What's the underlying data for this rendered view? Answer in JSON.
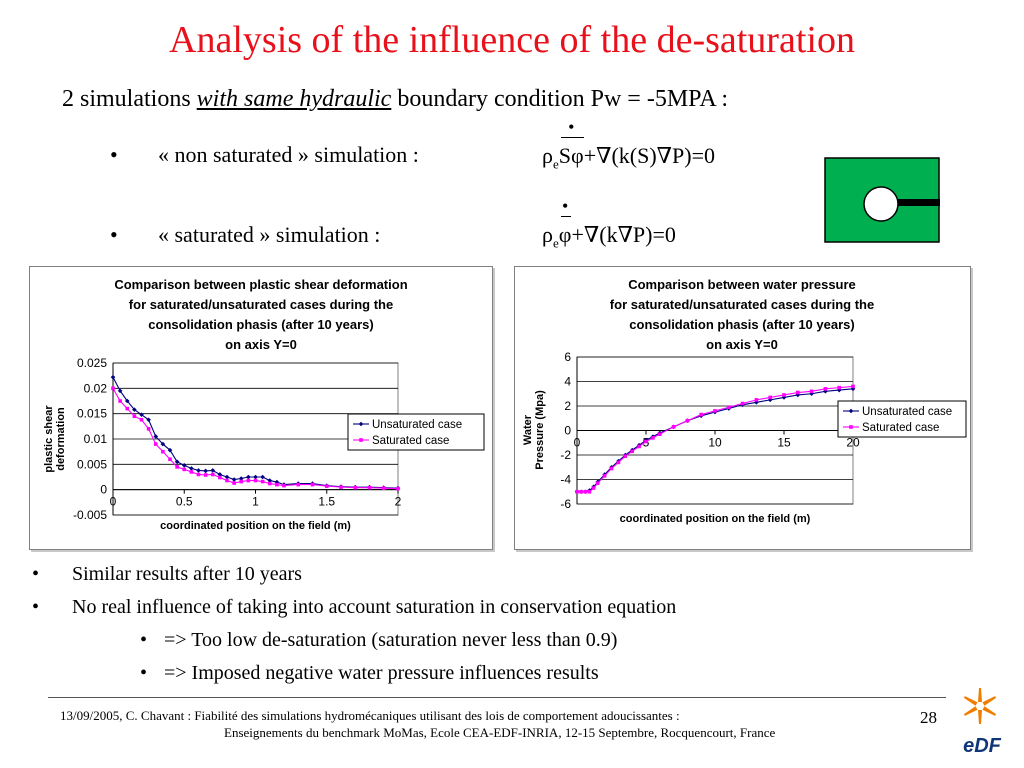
{
  "title": "Analysis of the influence of the de-saturation",
  "subtitle": {
    "prefix": "2 simulations ",
    "emph": "with same hydraulic",
    "suffix": " boundary condition Pw = -5MPA  :"
  },
  "bullets": [
    {
      "marker": "•",
      "text": "« non saturated » simulation :"
    },
    {
      "marker": "•",
      "text": "« saturated » simulation :"
    }
  ],
  "equations": {
    "unsat": {
      "rho": "ρ",
      "sub": "e",
      "over": "Sφ",
      "rest": "+∇(k(S)∇P)=0"
    },
    "sat": {
      "rho": "ρ",
      "sub": "e",
      "over": "φ",
      "rest": "+∇(k∇P)=0"
    }
  },
  "colors": {
    "title": "#e8101a",
    "icon_green": "#00b050",
    "series_unsat": "#000080",
    "series_sat": "#ff00ff",
    "edf_orange": "#f07d00",
    "edf_blue": "#10367a"
  },
  "chart_data": [
    {
      "type": "line",
      "title_lines": [
        "Comparison between plastic shear deformation",
        "for saturated/unsaturated cases during the",
        "consolidation phasis (after 10 years)",
        "on axis Y=0"
      ],
      "xlabel": "coordinated position on the field (m)",
      "ylabel_lines": [
        "plastic shear",
        "deformation"
      ],
      "xlim": [
        0,
        2
      ],
      "ylim": [
        -0.005,
        0.025
      ],
      "xticks": [
        0,
        0.5,
        1,
        1.5,
        2
      ],
      "xtick_labels": [
        "0",
        "0.5",
        "1",
        "1.5",
        "2"
      ],
      "yticks": [
        -0.005,
        0,
        0.005,
        0.01,
        0.015,
        0.02,
        0.025
      ],
      "ytick_labels": [
        "-0.005",
        "0",
        "0.005",
        "0.01",
        "0.015",
        "0.02",
        "0.025"
      ],
      "grid": "horizontal",
      "legend": "right",
      "series": [
        {
          "name": "Unsaturated case",
          "marker": "diamond",
          "x": [
            0,
            0.05,
            0.1,
            0.15,
            0.2,
            0.25,
            0.3,
            0.35,
            0.4,
            0.45,
            0.5,
            0.55,
            0.6,
            0.65,
            0.7,
            0.75,
            0.8,
            0.85,
            0.9,
            0.95,
            1.0,
            1.05,
            1.1,
            1.15,
            1.2,
            1.3,
            1.4,
            1.5,
            1.6,
            1.7,
            1.8,
            1.9,
            2.0
          ],
          "y": [
            0.0222,
            0.0195,
            0.0175,
            0.0158,
            0.0148,
            0.0138,
            0.0105,
            0.009,
            0.0078,
            0.0055,
            0.0048,
            0.0042,
            0.0038,
            0.0037,
            0.0038,
            0.003,
            0.0025,
            0.002,
            0.0022,
            0.0025,
            0.0025,
            0.0025,
            0.0018,
            0.0015,
            0.001,
            0.0012,
            0.0012,
            0.0008,
            0.0006,
            0.0005,
            0.0005,
            0.0004,
            0.0003
          ]
        },
        {
          "name": "Saturated case",
          "marker": "square",
          "x": [
            0,
            0.05,
            0.1,
            0.15,
            0.2,
            0.25,
            0.3,
            0.35,
            0.4,
            0.45,
            0.5,
            0.55,
            0.6,
            0.65,
            0.7,
            0.75,
            0.8,
            0.85,
            0.9,
            0.95,
            1.0,
            1.05,
            1.1,
            1.15,
            1.2,
            1.3,
            1.4,
            1.5,
            1.6,
            1.7,
            1.8,
            1.9,
            2.0
          ],
          "y": [
            0.02,
            0.0175,
            0.016,
            0.0145,
            0.0138,
            0.012,
            0.009,
            0.0075,
            0.006,
            0.0045,
            0.004,
            0.0035,
            0.003,
            0.0029,
            0.003,
            0.0024,
            0.0018,
            0.0013,
            0.0016,
            0.0018,
            0.0018,
            0.0016,
            0.0012,
            0.001,
            0.0008,
            0.001,
            0.001,
            0.0007,
            0.0005,
            0.0004,
            0.0004,
            0.0003,
            0.0002
          ]
        }
      ]
    },
    {
      "type": "line",
      "title_lines": [
        "Comparison between water pressure",
        "for saturated/unsaturated cases during the",
        "consolidation phasis (after 10 years)",
        "on axis Y=0"
      ],
      "xlabel": "coordinated position on the field (m)",
      "ylabel_lines": [
        "Water",
        "Pressure (Mpa)"
      ],
      "xlim": [
        0,
        20
      ],
      "ylim": [
        -6,
        6
      ],
      "xticks": [
        0,
        5,
        10,
        15,
        20
      ],
      "xtick_labels": [
        "0",
        "5",
        "10",
        "15",
        "20"
      ],
      "yticks": [
        -6,
        -4,
        -2,
        0,
        2,
        4,
        6
      ],
      "ytick_labels": [
        "-6",
        "-4",
        "-2",
        "0",
        "2",
        "4",
        "6"
      ],
      "grid": "horizontal",
      "legend": "right",
      "series": [
        {
          "name": "Unsaturated case",
          "marker": "diamond",
          "x": [
            0,
            0.3,
            0.6,
            0.9,
            1.2,
            1.5,
            2,
            2.5,
            3,
            3.5,
            4,
            4.5,
            5,
            5.5,
            6,
            7,
            8,
            9,
            10,
            11,
            12,
            13,
            14,
            15,
            16,
            17,
            18,
            19,
            20
          ],
          "y": [
            -5,
            -5,
            -5,
            -4.9,
            -4.6,
            -4.2,
            -3.6,
            -3.0,
            -2.5,
            -2.0,
            -1.6,
            -1.2,
            -0.8,
            -0.5,
            -0.2,
            0.3,
            0.8,
            1.2,
            1.5,
            1.8,
            2.1,
            2.3,
            2.5,
            2.7,
            2.9,
            3.0,
            3.2,
            3.3,
            3.4
          ]
        },
        {
          "name": "Saturated case",
          "marker": "square",
          "x": [
            0,
            0.3,
            0.6,
            0.9,
            1.2,
            1.5,
            2,
            2.5,
            3,
            3.5,
            4,
            4.5,
            5,
            5.5,
            6,
            7,
            8,
            9,
            10,
            11,
            12,
            13,
            14,
            15,
            16,
            17,
            18,
            19,
            20
          ],
          "y": [
            -5,
            -5,
            -5,
            -5,
            -4.7,
            -4.3,
            -3.7,
            -3.1,
            -2.6,
            -2.1,
            -1.7,
            -1.3,
            -0.9,
            -0.6,
            -0.3,
            0.3,
            0.8,
            1.3,
            1.6,
            1.9,
            2.2,
            2.5,
            2.7,
            2.9,
            3.1,
            3.2,
            3.4,
            3.5,
            3.6
          ]
        }
      ]
    }
  ],
  "conclusions": [
    {
      "marker": "•",
      "text": "Similar results after 10 years"
    },
    {
      "marker": "•",
      "text": "No real influence of taking into account saturation in conservation equation"
    },
    {
      "marker": "•",
      "text": "=> Too low de-saturation (saturation never less than 0.9)"
    },
    {
      "marker": "•",
      "text": "=> Imposed negative water pressure influences results"
    }
  ],
  "footer": {
    "line1": "13/09/2005, C. Chavant : Fiabilité des simulations hydromécaniques utilisant des lois de comportement adoucissantes :",
    "line2": "Enseignements du benchmark MoMas, Ecole CEA-EDF-INRIA, 12-15 Septembre,  Rocquencourt, France",
    "page": "28"
  },
  "logo": {
    "text": "eDF"
  }
}
